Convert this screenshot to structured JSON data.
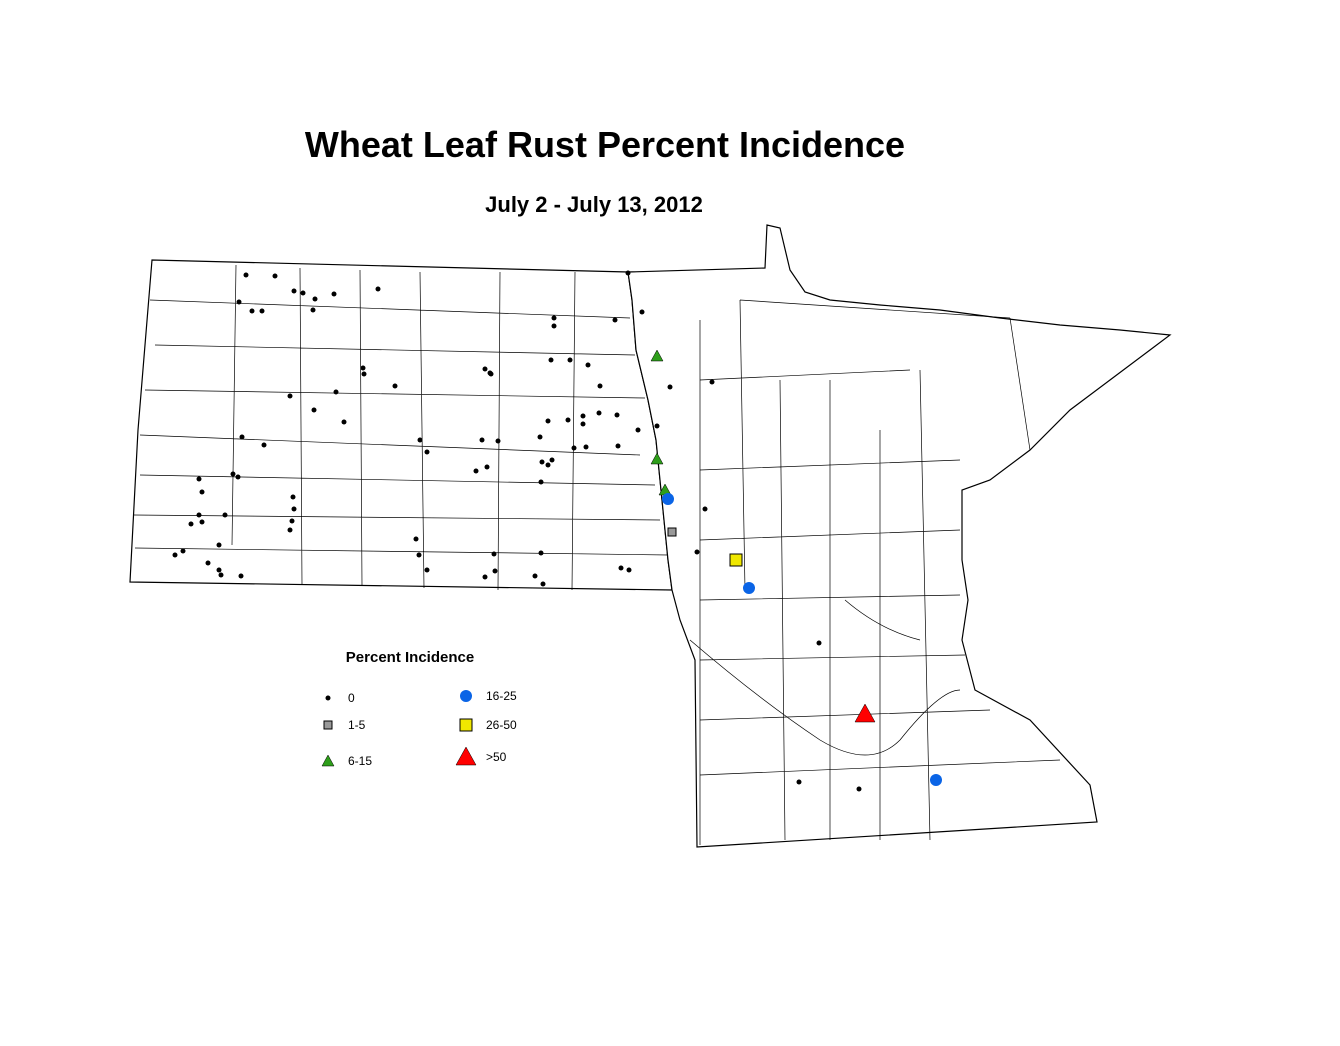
{
  "header": {
    "title": "Wheat Leaf Rust Percent Incidence",
    "subtitle": "July 2 - July 13, 2012"
  },
  "legend": {
    "title": "Percent Incidence",
    "items": [
      "0",
      "1-5",
      "6-15",
      "16-25",
      "26-50",
      ">50"
    ]
  }
}
